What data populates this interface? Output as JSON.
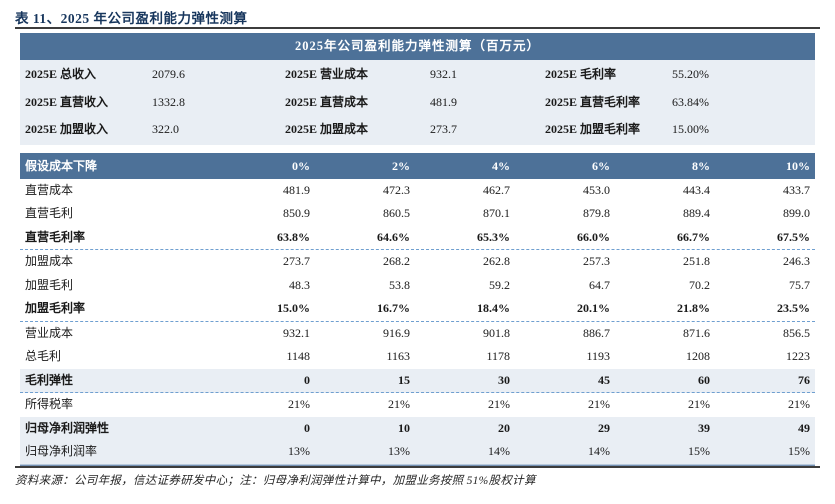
{
  "page_title": "表 11、2025 年公司盈利能力弹性测算",
  "table": {
    "title": "2025年公司盈利能力弹性测算（百万元）",
    "summary": {
      "rows": [
        [
          "2025E 总收入",
          "2079.6",
          "2025E 营业成本",
          "932.1",
          "2025E 毛利率",
          "55.20%"
        ],
        [
          "2025E 直营收入",
          "1332.8",
          "2025E 直营成本",
          "481.9",
          "2025E 直营毛利率",
          "63.84%"
        ],
        [
          "2025E 加盟收入",
          "322.0",
          "2025E 加盟成本",
          "273.7",
          "2025E 加盟毛利率",
          "15.00%"
        ]
      ]
    },
    "scenario": {
      "header_label": "假设成本下降",
      "columns": [
        "0%",
        "2%",
        "4%",
        "6%",
        "8%",
        "10%"
      ],
      "rows": [
        {
          "label": "直营成本",
          "values": [
            "481.9",
            "472.3",
            "462.7",
            "453.0",
            "443.4",
            "433.7"
          ],
          "bold": false,
          "highlight": false,
          "dashed_after": false
        },
        {
          "label": "直营毛利",
          "values": [
            "850.9",
            "860.5",
            "870.1",
            "879.8",
            "889.4",
            "899.0"
          ],
          "bold": false,
          "highlight": false,
          "dashed_after": false
        },
        {
          "label": "直营毛利率",
          "values": [
            "63.8%",
            "64.6%",
            "65.3%",
            "66.0%",
            "66.7%",
            "67.5%"
          ],
          "bold": true,
          "highlight": false,
          "dashed_after": true
        },
        {
          "label": "加盟成本",
          "values": [
            "273.7",
            "268.2",
            "262.8",
            "257.3",
            "251.8",
            "246.3"
          ],
          "bold": false,
          "highlight": false,
          "dashed_after": false
        },
        {
          "label": "加盟毛利",
          "values": [
            "48.3",
            "53.8",
            "59.2",
            "64.7",
            "70.2",
            "75.7"
          ],
          "bold": false,
          "highlight": false,
          "dashed_after": false
        },
        {
          "label": "加盟毛利率",
          "values": [
            "15.0%",
            "16.7%",
            "18.4%",
            "20.1%",
            "21.8%",
            "23.5%"
          ],
          "bold": true,
          "highlight": false,
          "dashed_after": true
        },
        {
          "label": "营业成本",
          "values": [
            "932.1",
            "916.9",
            "901.8",
            "886.7",
            "871.6",
            "856.5"
          ],
          "bold": false,
          "highlight": false,
          "dashed_after": false
        },
        {
          "label": "总毛利",
          "values": [
            "1148",
            "1163",
            "1178",
            "1193",
            "1208",
            "1223"
          ],
          "bold": false,
          "highlight": false,
          "dashed_after": false
        },
        {
          "label": "毛利弹性",
          "values": [
            "0",
            "15",
            "30",
            "45",
            "60",
            "76"
          ],
          "bold": true,
          "highlight": true,
          "dashed_after": true
        },
        {
          "label": "所得税率",
          "values": [
            "21%",
            "21%",
            "21%",
            "21%",
            "21%",
            "21%"
          ],
          "bold": false,
          "highlight": false,
          "dashed_after": false
        },
        {
          "label": "归母净利润弹性",
          "values": [
            "0",
            "10",
            "20",
            "29",
            "39",
            "49"
          ],
          "bold": true,
          "highlight": true,
          "dashed_after": false
        },
        {
          "label": "归母净利润率",
          "values": [
            "13%",
            "13%",
            "14%",
            "14%",
            "15%",
            "15%"
          ],
          "bold": false,
          "highlight": true,
          "dashed_after": false
        }
      ]
    }
  },
  "footer_note": "资料来源：公司年报，信达证券研发中心；注：归母净利润弹性计算中，加盟业务按照 51%股权计算",
  "colors": {
    "header_bg": "#4d7198",
    "highlight_bg": "#e9eef4",
    "title_color": "#17365d",
    "dashed_line": "#6f9fd0"
  }
}
